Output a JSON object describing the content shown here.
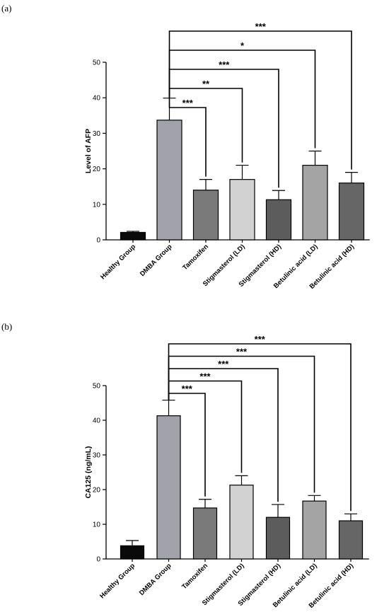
{
  "chart_data": [
    {
      "panel_label": "(a)",
      "type": "bar",
      "ylabel": "Level of AFP",
      "ylim": [
        0,
        50
      ],
      "yticks": [
        "0",
        "10",
        "20",
        "30",
        "40",
        "50"
      ],
      "categories": [
        "Healthy Group",
        "DMBA Group",
        "Tamoxifen",
        "Stigmasterol (LD)",
        "Stigmasterol (HD)",
        "Betulinic acid (LD)",
        "Betulinic acid (HD)"
      ],
      "values": [
        2.1,
        33.7,
        14.0,
        17.0,
        11.3,
        21.0,
        16.0
      ],
      "errors": [
        0.3,
        6.2,
        3.0,
        4.0,
        2.6,
        4.0,
        3.0
      ],
      "colors": [
        "#0a0a0a",
        "#a2a2aa",
        "#7a7a7a",
        "#d2d2d2",
        "#5c5c5c",
        "#a4a4a4",
        "#666666"
      ],
      "comparisons": [
        {
          "from": "DMBA Group",
          "to": "Tamoxifen",
          "label": "***"
        },
        {
          "from": "DMBA Group",
          "to": "Stigmasterol (LD)",
          "label": "**"
        },
        {
          "from": "DMBA Group",
          "to": "Stigmasterol (HD)",
          "label": "***"
        },
        {
          "from": "DMBA Group",
          "to": "Betulinic acid (LD)",
          "label": "*"
        },
        {
          "from": "DMBA Group",
          "to": "Betulinic acid (HD)",
          "label": "***"
        }
      ]
    },
    {
      "panel_label": "(b)",
      "type": "bar",
      "ylabel": "CA125 (ng/mL)",
      "ylim": [
        0,
        50
      ],
      "yticks": [
        "0",
        "10",
        "20",
        "30",
        "40",
        "50"
      ],
      "categories": [
        "Healthy Group",
        "DMBA Group",
        "Tamoxifen",
        "Stigmasterol (LD)",
        "Stigmasterol (HD)",
        "Betulinic acid (LD)",
        "Betulinic acid (HD)"
      ],
      "values": [
        3.8,
        41.3,
        14.7,
        21.3,
        12.0,
        16.7,
        11.0
      ],
      "errors": [
        1.5,
        4.5,
        2.5,
        2.7,
        3.7,
        1.6,
        2.0
      ],
      "colors": [
        "#0a0a0a",
        "#a2a2aa",
        "#7a7a7a",
        "#d2d2d2",
        "#5c5c5c",
        "#a4a4a4",
        "#666666"
      ],
      "comparisons": [
        {
          "from": "DMBA Group",
          "to": "Tamoxifen",
          "label": "***"
        },
        {
          "from": "DMBA Group",
          "to": "Stigmasterol (LD)",
          "label": "***"
        },
        {
          "from": "DMBA Group",
          "to": "Stigmasterol (HD)",
          "label": "***"
        },
        {
          "from": "DMBA Group",
          "to": "Betulinic acid (LD)",
          "label": "***"
        },
        {
          "from": "DMBA Group",
          "to": "Betulinic acid (HD)",
          "label": "***"
        }
      ]
    }
  ]
}
